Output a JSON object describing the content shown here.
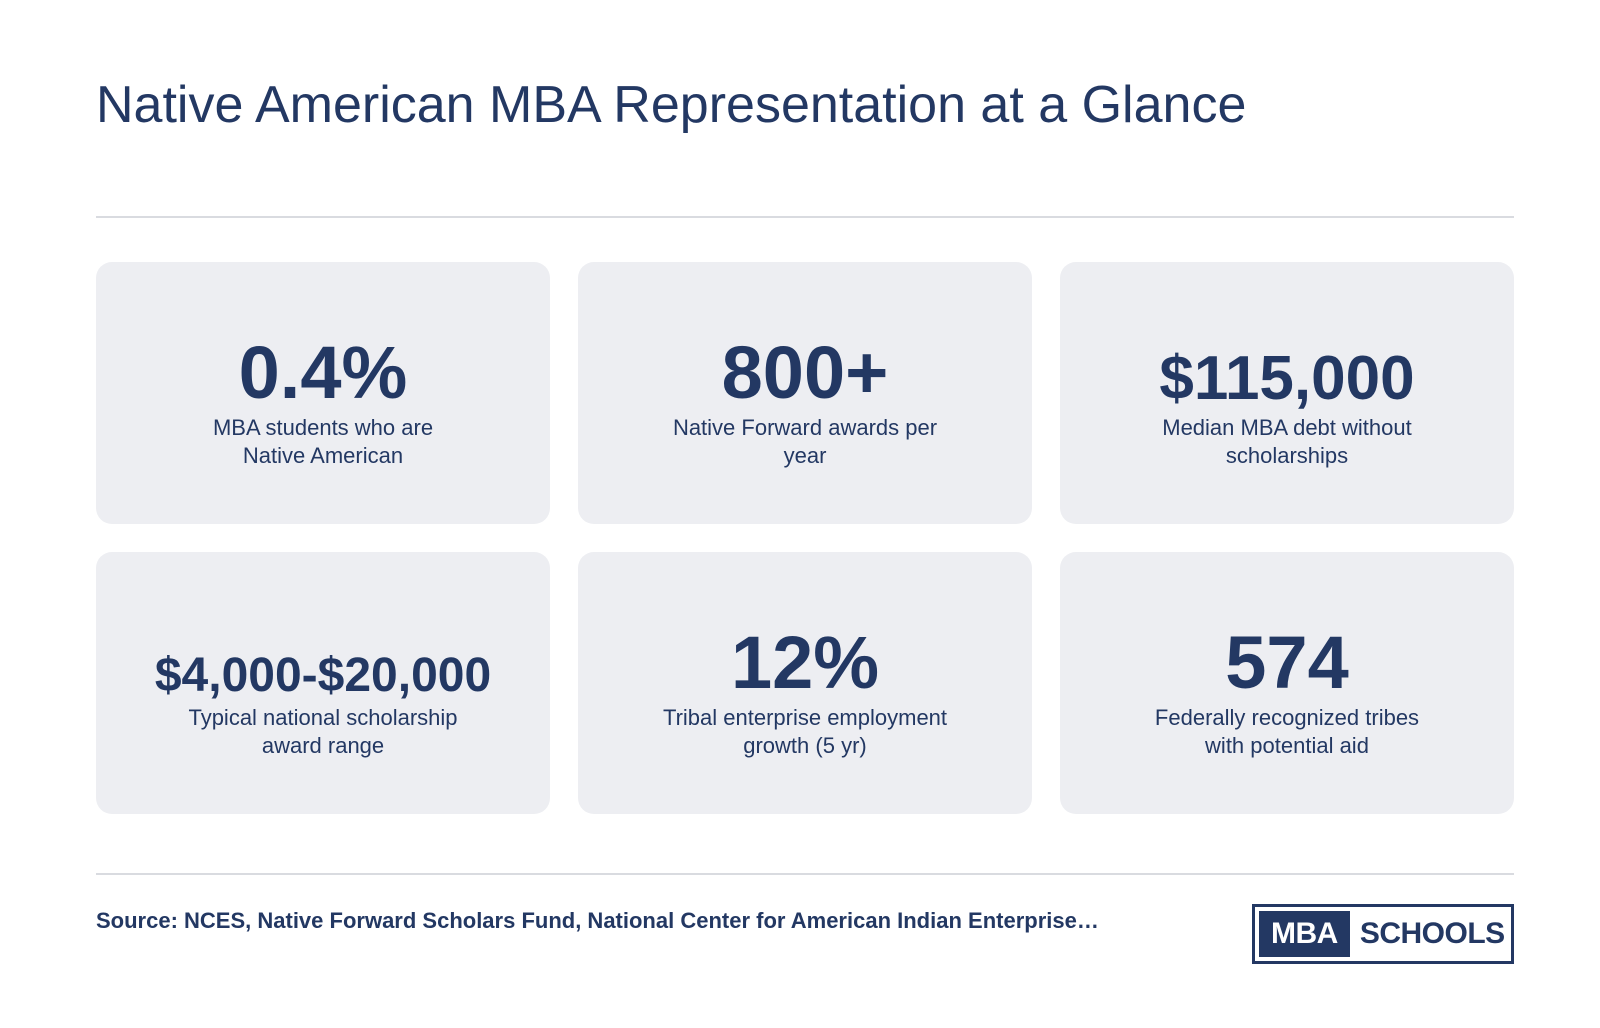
{
  "title": "Native American MBA Representation at a Glance",
  "stats": [
    {
      "value": "0.4%",
      "label": "MBA students who are Native American"
    },
    {
      "value": "800+",
      "label": "Native Forward awards per year"
    },
    {
      "value": "$115,000",
      "label": "Median MBA debt without scholarships"
    },
    {
      "value": "$4,000-$20,000",
      "label": "Typical national scholarship award range"
    },
    {
      "value": "12%",
      "label": "Tribal enterprise employment growth (5 yr)"
    },
    {
      "value": "574",
      "label": "Federally recognized tribes with potential aid"
    }
  ],
  "source": "Source: NCES, Native Forward Scholars Fund, National Center for American Indian Enterprise…",
  "logo": {
    "mba": "MBA",
    "schools": "SCHOOLS"
  },
  "colors": {
    "primary": "#233863",
    "card_background": "#edeef2",
    "divider": "#d9dbe0",
    "page_background": "#ffffff"
  }
}
